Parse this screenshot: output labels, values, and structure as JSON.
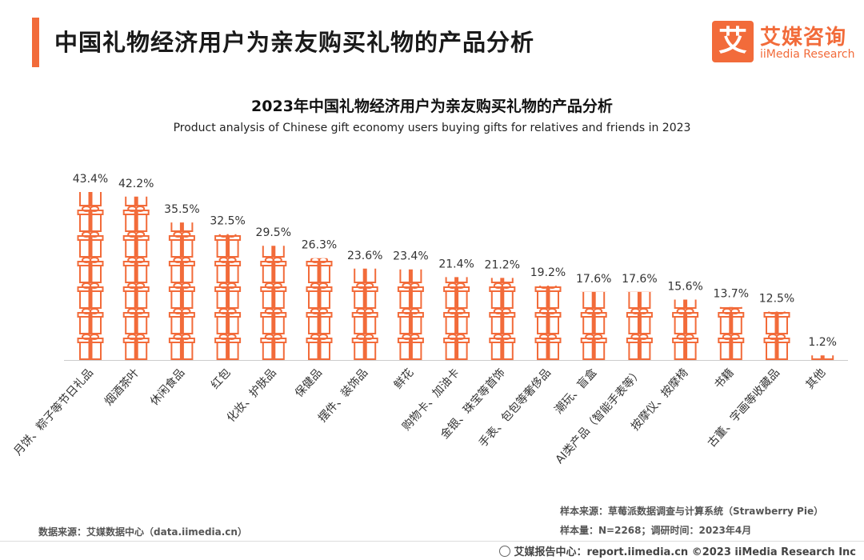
{
  "header": {
    "title": "中国礼物经济用户为亲友购买礼物的产品分析",
    "accent_color": "#f26b3a"
  },
  "logo": {
    "glyph": "艾",
    "name_cn": "艾媒咨询",
    "name_en": "iiMedia Research"
  },
  "chart_data": {
    "type": "bar",
    "title": "2023年中国礼物经济用户为亲友购买礼物的产品分析",
    "subtitle": "Product analysis of Chinese gift economy users buying gifts for relatives and friends in 2023",
    "categories": [
      "月饼、粽子等节日礼品",
      "烟酒茶叶",
      "休闲食品",
      "红包",
      "化妆、护肤品",
      "保健品",
      "摆件、装饰品",
      "鲜花",
      "购物卡、加油卡",
      "金银、珠宝等首饰",
      "手表、包包等奢侈品",
      "潮玩、盲盒",
      "AI类产品（智能手表等）",
      "按摩仪、按摩椅",
      "书籍",
      "古董、字画等收藏品",
      "其他"
    ],
    "values": [
      43.4,
      42.2,
      35.5,
      32.5,
      29.5,
      26.3,
      23.6,
      23.4,
      21.4,
      21.2,
      19.2,
      17.6,
      17.6,
      15.6,
      13.7,
      12.5,
      1.2
    ],
    "value_labels": [
      "43.4%",
      "42.2%",
      "35.5%",
      "32.5%",
      "29.5%",
      "26.3%",
      "23.6%",
      "23.4%",
      "21.4%",
      "21.2%",
      "19.2%",
      "17.6%",
      "17.6%",
      "15.6%",
      "13.7%",
      "12.5%",
      "1.2%"
    ],
    "unit": "%",
    "ylim": [
      0,
      45
    ],
    "grid": false,
    "legend": "none",
    "bar_style": "stacked gift-box icons",
    "color": "#f26b3a"
  },
  "sources": {
    "left": "数据来源：艾媒数据中心（data.iimedia.cn）",
    "right_1": "样本来源：草莓派数据调查与计算系统（Strawberry Pie）",
    "right_2": "样本量：N=2268；调研时间：2023年4月"
  },
  "footer": {
    "text": "艾媒报告中心：report.iimedia.cn  ©2023  iiMedia Research  Inc"
  }
}
